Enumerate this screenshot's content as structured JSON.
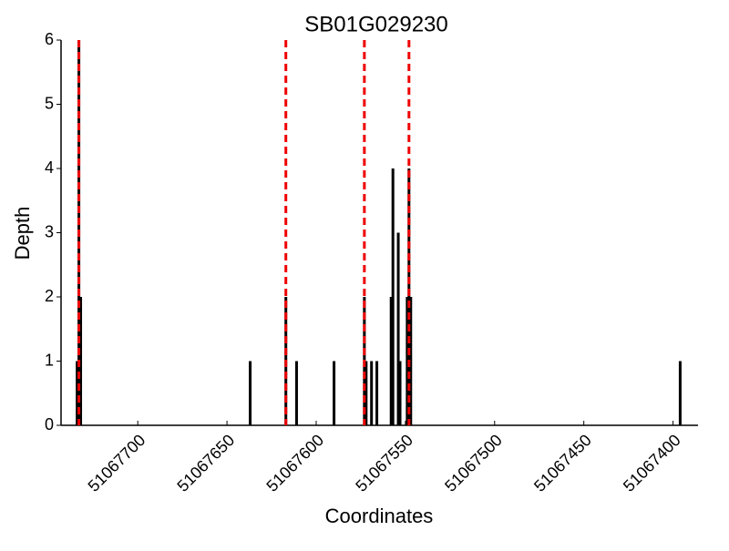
{
  "chart_data": {
    "type": "bar",
    "title": "SB01G029230",
    "xlabel": "Coordinates",
    "ylabel": "Depth",
    "x": [
      51067734,
      51067733,
      51067732,
      51067637,
      51067617,
      51067611,
      51067590,
      51067573,
      51067572,
      51067569,
      51067566,
      51067558,
      51067557,
      51067554,
      51067553,
      51067549,
      51067548,
      51067547,
      51067396
    ],
    "values": [
      1,
      6,
      2,
      1,
      2,
      1,
      1,
      2,
      1,
      1,
      1,
      2,
      4,
      3,
      1,
      2,
      4,
      2,
      1
    ],
    "color": "#000000",
    "vlines": [
      51067733,
      51067617,
      51067573,
      51067548
    ],
    "vline_color": "#ee0000",
    "xlim": [
      51067743,
      51067386
    ],
    "xticks": [
      51067700,
      51067650,
      51067600,
      51067550,
      51067500,
      51067450,
      51067400
    ],
    "ylim": [
      0,
      6
    ],
    "yticks": [
      0,
      1,
      2,
      3,
      4,
      5,
      6
    ]
  }
}
